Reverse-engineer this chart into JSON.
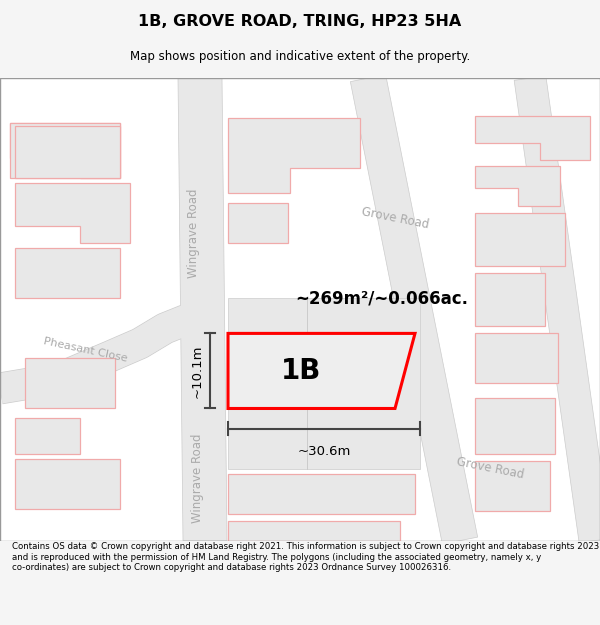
{
  "title": "1B, GROVE ROAD, TRING, HP23 5HA",
  "subtitle": "Map shows position and indicative extent of the property.",
  "footer": "Contains OS data © Crown copyright and database right 2021. This information is subject to Crown copyright and database rights 2023 and is reproduced with the permission of HM Land Registry. The polygons (including the associated geometry, namely x, y co-ordinates) are subject to Crown copyright and database rights 2023 Ordnance Survey 100026316.",
  "bg_color": "#f5f5f5",
  "map_bg": "#ffffff",
  "property_fill": "#e8e8e8",
  "property_border": "#ff0000",
  "property_label": "1B",
  "area_label": "~269m²/~0.066ac.",
  "width_label": "~30.6m",
  "height_label": "~10.1m",
  "road_label_wingrave": "Wingrave Road",
  "road_label_grove": "Grove Road",
  "road_label_pheasant": "Pheasant Close",
  "building_fill": "#e8e8e8",
  "building_outline": "#f0aaaa",
  "road_fill": "#e8e8e8",
  "road_label_color": "#aaaaaa",
  "dim_line_color": "#444444"
}
